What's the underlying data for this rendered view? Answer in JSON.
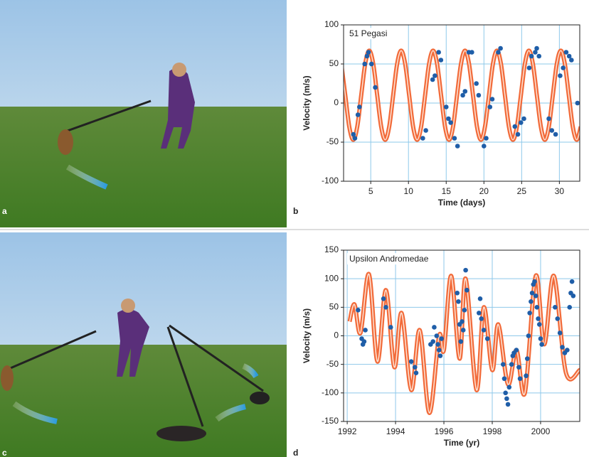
{
  "panel_labels": [
    "a",
    "b",
    "c",
    "d"
  ],
  "chart_data": [
    {
      "type": "scatter",
      "title": "51 Pegasi",
      "x_label": "Time (days)",
      "y_label": "Velocity (m/s)",
      "xlim": [
        1.4,
        32.7
      ],
      "ylim": [
        -100,
        100
      ],
      "xticks": [
        5,
        10,
        15,
        20,
        25,
        30
      ],
      "yticks": [
        -100,
        -50,
        0,
        50,
        100
      ],
      "grid": true,
      "grid_color": "#8ec8ea",
      "series": [
        {
          "style": "line",
          "color": "#f26b3a",
          "x": [
            1.095,
            1.624,
            2.153,
            2.682,
            3.211,
            3.74,
            4.269,
            4.798,
            5.327,
            5.856,
            6.385,
            6.914,
            7.443,
            7.972,
            8.501,
            9.03,
            9.559,
            10.088,
            10.617,
            11.146,
            11.675,
            12.204,
            12.733,
            13.262,
            13.791,
            14.32,
            14.849,
            15.378,
            15.907,
            16.436,
            16.965,
            17.494,
            18.023,
            18.552,
            19.081,
            19.61,
            20.139,
            20.668,
            21.197,
            21.726,
            22.255,
            22.784,
            23.313,
            23.842,
            24.371,
            24.9,
            25.429,
            25.958,
            26.487,
            27.016,
            27.545,
            28.074,
            28.603,
            29.132,
            29.661,
            30.19,
            30.719,
            31.248,
            31.777,
            32.306,
            32.835
          ],
          "values": [
            50.3,
            10,
            -30.3,
            -47,
            -30.3,
            10,
            50.3,
            67,
            50.3,
            10,
            -30.3,
            -47,
            -30.3,
            10,
            50.3,
            67,
            50.3,
            10,
            -30.3,
            -47,
            -30.3,
            10,
            50.3,
            67,
            50.3,
            10,
            -30.3,
            -47,
            -30.3,
            10,
            50.3,
            67,
            50.3,
            10,
            -30.3,
            -47,
            -30.3,
            10,
            50.3,
            67,
            50.3,
            10,
            -30.3,
            -47,
            -30.3,
            10,
            50.3,
            67,
            50.3,
            10,
            -30.3,
            -47,
            -30.3,
            10,
            50.3,
            67,
            50.3,
            10,
            -30.3,
            -47,
            -30.3
          ]
        },
        {
          "style": "points",
          "color": "#1f5ea8",
          "x": [
            2.7,
            2.9,
            3.3,
            3.5,
            4.2,
            4.5,
            4.7,
            5.1,
            5.6,
            11.9,
            12.3,
            13.2,
            13.5,
            14.0,
            14.3,
            15.0,
            15.3,
            15.6,
            16.1,
            16.5,
            17.2,
            17.5,
            18.0,
            18.4,
            19.0,
            19.3,
            20.0,
            20.3,
            20.8,
            21.1,
            21.9,
            22.2,
            24.1,
            24.5,
            24.9,
            25.3,
            26.0,
            26.3,
            26.8,
            27.0,
            27.3,
            28.6,
            29.0,
            29.5,
            30.1,
            30.5,
            30.9,
            31.3,
            31.6,
            32.4
          ],
          "values": [
            -40,
            -45,
            -15,
            -5,
            50,
            60,
            65,
            50,
            20,
            -45,
            -35,
            30,
            35,
            65,
            55,
            -5,
            -20,
            -25,
            -45,
            -55,
            10,
            15,
            65,
            65,
            25,
            10,
            -55,
            -45,
            -5,
            5,
            65,
            70,
            -30,
            -40,
            -25,
            -20,
            45,
            60,
            65,
            70,
            60,
            -20,
            -35,
            -40,
            35,
            45,
            65,
            60,
            55,
            0
          ]
        }
      ]
    },
    {
      "type": "scatter",
      "title": "Upsilon Andromedae",
      "x_label": "Time (yr)",
      "y_label": "Velocity (m/s)",
      "xlim": [
        1991.85,
        2001.62
      ],
      "ylim": [
        -150,
        150
      ],
      "xticks": [
        1992,
        1994,
        1996,
        1998,
        2000
      ],
      "yticks": [
        -150,
        -100,
        -50,
        0,
        50,
        100,
        150
      ],
      "grid": true,
      "grid_color": "#8ec8ea",
      "series": [
        {
          "style": "line",
          "color": "#f26b3a",
          "x": [
            1992.1,
            1992.3,
            1992.55,
            1992.9,
            1993.25,
            1993.6,
            1993.95,
            1994.25,
            1994.65,
            1995.0,
            1995.4,
            1995.8,
            1996.0,
            1996.3,
            1996.65,
            1996.9,
            1997.35,
            1997.65,
            1998.0,
            1998.25,
            1998.65,
            1999.0,
            1999.35,
            1999.8,
            2000.15,
            2000.55,
            2001.05,
            2001.62
          ],
          "values": [
            25,
            55,
            5,
            108,
            -45,
            80,
            -55,
            40,
            -95,
            10,
            -135,
            0,
            -25,
            105,
            -40,
            100,
            -95,
            50,
            -60,
            20,
            -85,
            -25,
            -100,
            105,
            -15,
            105,
            -65,
            -60
          ]
        },
        {
          "style": "points",
          "color": "#1f5ea8",
          "x": [
            1992.45,
            1992.6,
            1992.65,
            1992.7,
            1992.75,
            1993.5,
            1993.6,
            1993.8,
            1994.65,
            1994.8,
            1994.85,
            1995.45,
            1995.55,
            1995.6,
            1995.7,
            1995.75,
            1995.8,
            1995.85,
            1995.9,
            1996.55,
            1996.6,
            1996.65,
            1996.7,
            1996.75,
            1996.8,
            1996.85,
            1996.9,
            1996.95,
            1997.45,
            1997.5,
            1997.55,
            1997.65,
            1997.8,
            1998.45,
            1998.5,
            1998.55,
            1998.6,
            1998.65,
            1998.7,
            1998.8,
            1998.85,
            1998.9,
            1999.0,
            1999.1,
            1999.15,
            1999.4,
            1999.45,
            1999.5,
            1999.55,
            1999.6,
            1999.65,
            1999.7,
            1999.75,
            1999.8,
            1999.85,
            1999.9,
            1999.95,
            2000.0,
            2000.05,
            2000.6,
            2000.7,
            2000.8,
            2000.9,
            2001.0,
            2001.1,
            2001.2,
            2001.25,
            2001.3,
            2001.35
          ],
          "values": [
            45,
            -5,
            -15,
            -10,
            10,
            65,
            50,
            15,
            -45,
            -55,
            -65,
            -15,
            -10,
            15,
            0,
            -15,
            -25,
            -35,
            -5,
            75,
            60,
            20,
            -10,
            25,
            10,
            45,
            115,
            80,
            40,
            65,
            30,
            10,
            -5,
            -50,
            -75,
            -100,
            -110,
            -120,
            -90,
            -50,
            -35,
            -30,
            -25,
            -55,
            -75,
            -70,
            -40,
            0,
            40,
            60,
            75,
            90,
            95,
            70,
            50,
            30,
            20,
            -5,
            -15,
            50,
            30,
            5,
            -20,
            -30,
            -25,
            50,
            75,
            95,
            70
          ]
        }
      ]
    }
  ]
}
